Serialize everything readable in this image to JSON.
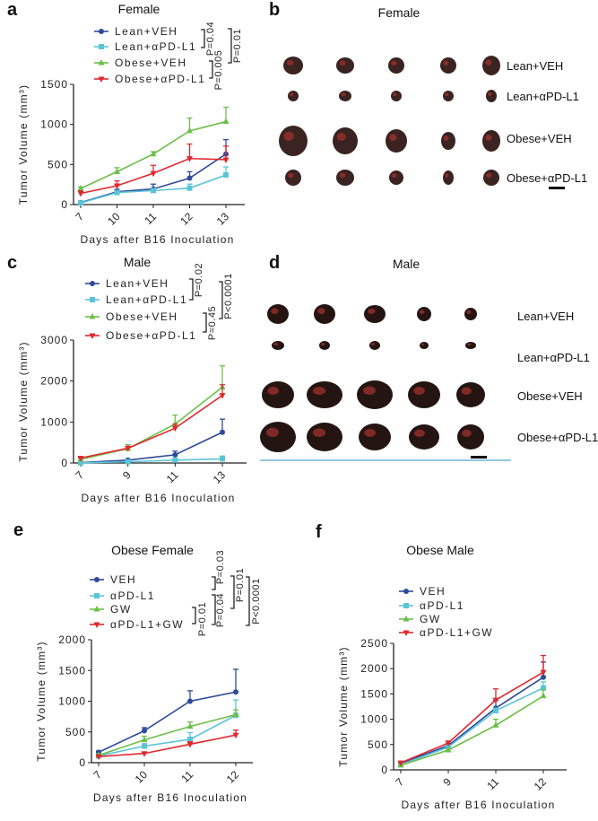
{
  "panels": {
    "a": {
      "letter": "a",
      "title": "Female"
    },
    "b": {
      "letter": "b",
      "title": "Female",
      "rows": [
        "Lean+VEH",
        "Lean+αPD-L1",
        "Obese+VEH",
        "Obese+αPD-L1"
      ]
    },
    "c": {
      "letter": "c",
      "title": "Male"
    },
    "d": {
      "letter": "d",
      "title": "Male",
      "rows": [
        "Lean+VEH",
        "Lean+αPD-L1",
        "Obese+VEH",
        "Obese+αPD-L1"
      ]
    },
    "e": {
      "letter": "e",
      "title": "Obese Female"
    },
    "f": {
      "letter": "f",
      "title": "Obese Male"
    }
  },
  "colors": {
    "veh": "#2e4a9a",
    "apdl1": "#5bc4d8",
    "gw": "#6cbf4a",
    "combo": "#e0282e"
  },
  "chart_data": [
    {
      "panel": "a",
      "type": "line",
      "title": "Female",
      "xlabel": "Days after B16 Inoculation",
      "ylabel": "Tumor Volume (mm³)",
      "x": [
        7,
        10,
        11,
        12,
        13
      ],
      "yticks": [
        0,
        500,
        1000,
        1500
      ],
      "ylim": [
        0,
        1500
      ],
      "grid": false,
      "legend": "top",
      "series": [
        {
          "name": "Lean+VEH",
          "marker": "circle",
          "color": "#2e4a9a",
          "values": [
            25,
            160,
            195,
            330,
            630
          ],
          "error": [
            10,
            30,
            60,
            80,
            180
          ]
        },
        {
          "name": "Lean+αPD-L1",
          "marker": "square",
          "color": "#5bc4d8",
          "values": [
            20,
            150,
            175,
            205,
            370
          ],
          "error": [
            10,
            20,
            20,
            50,
            100
          ]
        },
        {
          "name": "Obese+VEH",
          "marker": "triangle-up",
          "color": "#6cbf4a",
          "values": [
            200,
            410,
            630,
            920,
            1035
          ],
          "error": [
            20,
            50,
            30,
            160,
            180
          ]
        },
        {
          "name": "Obese+αPD-L1",
          "marker": "triangle-down",
          "color": "#e0282e",
          "values": [
            140,
            235,
            390,
            575,
            560
          ],
          "error": [
            30,
            60,
            100,
            180,
            170
          ]
        }
      ],
      "annotations": [
        "P=0.04",
        "P=0.005",
        "P=0.01"
      ]
    },
    {
      "panel": "c",
      "type": "line",
      "title": "Male",
      "xlabel": "Days after B16 Inoculation",
      "ylabel": "Tumor Volume (mm³)",
      "x": [
        7,
        9,
        11,
        13
      ],
      "yticks": [
        0,
        1000,
        2000,
        3000
      ],
      "ylim": [
        0,
        3000
      ],
      "grid": false,
      "legend": "top",
      "series": [
        {
          "name": "Lean+VEH",
          "marker": "circle",
          "color": "#2e4a9a",
          "values": [
            10,
            70,
            200,
            750
          ],
          "error": [
            10,
            20,
            90,
            320
          ]
        },
        {
          "name": "Lean+αPD-L1",
          "marker": "square",
          "color": "#5bc4d8",
          "values": [
            5,
            30,
            70,
            100
          ],
          "error": [
            5,
            10,
            30,
            70
          ]
        },
        {
          "name": "Obese+VEH",
          "marker": "triangle-up",
          "color": "#6cbf4a",
          "values": [
            90,
            350,
            950,
            1850
          ],
          "error": [
            20,
            100,
            220,
            520
          ]
        },
        {
          "name": "Obese+αPD-L1",
          "marker": "triangle-down",
          "color": "#e0282e",
          "values": [
            120,
            360,
            850,
            1650
          ],
          "error": [
            20,
            50,
            100,
            260
          ]
        }
      ],
      "annotations": [
        "P=0.02",
        "P=0.45",
        "P<0.0001"
      ]
    },
    {
      "panel": "e",
      "type": "line",
      "title": "Obese Female",
      "xlabel": "Days after B16 Inoculation",
      "ylabel": "Tumor Volume (mm³)",
      "x": [
        7,
        10,
        11,
        12
      ],
      "yticks": [
        0,
        500,
        1000,
        1500,
        2000
      ],
      "ylim": [
        0,
        2000
      ],
      "grid": false,
      "legend": "top",
      "series": [
        {
          "name": "VEH",
          "marker": "circle",
          "color": "#2e4a9a",
          "values": [
            170,
            520,
            1000,
            1150
          ],
          "error": [
            20,
            50,
            170,
            370
          ]
        },
        {
          "name": "αPD-L1",
          "marker": "square",
          "color": "#5bc4d8",
          "values": [
            110,
            270,
            380,
            770
          ],
          "error": [
            20,
            40,
            110,
            250
          ]
        },
        {
          "name": "GW",
          "marker": "triangle-up",
          "color": "#6cbf4a",
          "values": [
            120,
            370,
            590,
            780
          ],
          "error": [
            20,
            60,
            70,
            80
          ]
        },
        {
          "name": "αPD-L1+GW",
          "marker": "triangle-down",
          "color": "#e0282e",
          "values": [
            100,
            150,
            300,
            450
          ],
          "error": [
            10,
            20,
            40,
            80
          ]
        }
      ],
      "annotations": [
        "P=0.01",
        "P=0.04",
        "P=0.03",
        "P=0.01",
        "P<0.0001"
      ]
    },
    {
      "panel": "f",
      "type": "line",
      "title": "Obese Male",
      "xlabel": "Days after B16 Inoculation",
      "ylabel": "Tumor Volume (mm³)",
      "x": [
        7,
        9,
        11,
        12
      ],
      "yticks": [
        0,
        500,
        1000,
        1500,
        2000,
        2500
      ],
      "ylim": [
        0,
        2500
      ],
      "grid": false,
      "legend": "top",
      "series": [
        {
          "name": "VEH",
          "marker": "circle",
          "color": "#2e4a9a",
          "values": [
            130,
            480,
            1220,
            1830
          ],
          "error": [
            20,
            40,
            150,
            300
          ]
        },
        {
          "name": "αPD-L1",
          "marker": "square",
          "color": "#5bc4d8",
          "values": [
            100,
            450,
            1170,
            1620
          ],
          "error": [
            20,
            40,
            50,
            120
          ]
        },
        {
          "name": "GW",
          "marker": "triangle-up",
          "color": "#6cbf4a",
          "values": [
            90,
            390,
            880,
            1460
          ],
          "error": [
            10,
            20,
            120,
            120
          ]
        },
        {
          "name": "αPD-L1+GW",
          "marker": "triangle-down",
          "color": "#e0282e",
          "values": [
            140,
            530,
            1380,
            1930
          ],
          "error": [
            20,
            40,
            220,
            330
          ]
        }
      ],
      "annotations": []
    }
  ]
}
